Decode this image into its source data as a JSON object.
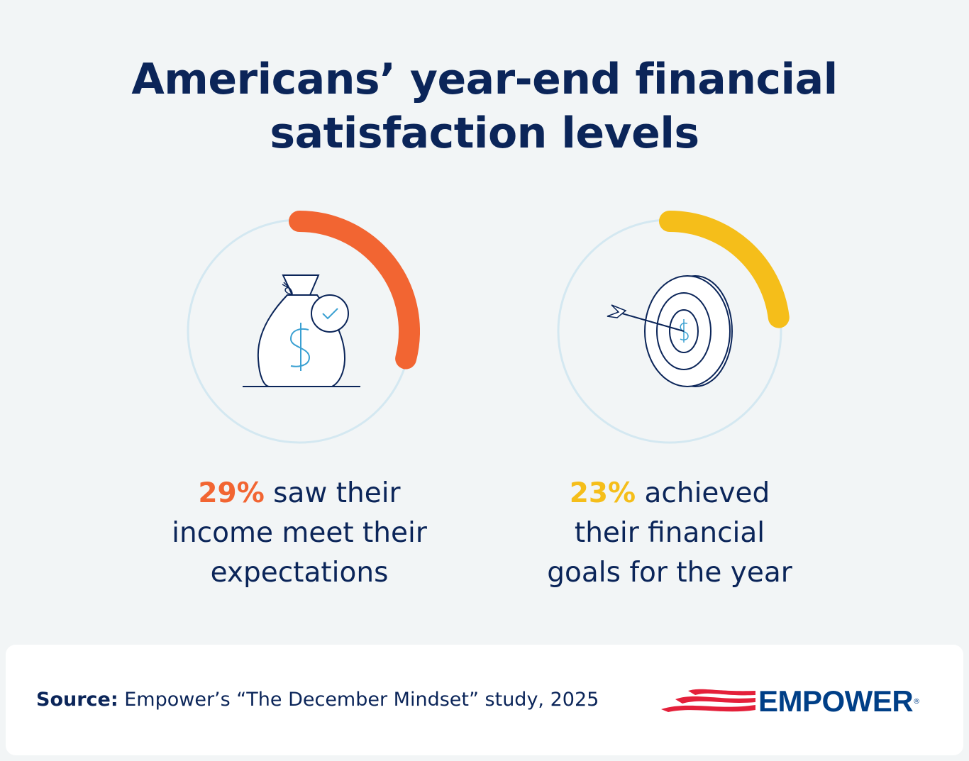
{
  "title_line1": "Americans’ year-end financial",
  "title_line2": "satisfaction levels",
  "chart_data": [
    {
      "type": "pie",
      "variant": "gauge",
      "value": 29,
      "max": 100,
      "color": "#f26532",
      "track_color": "#d4e8f1",
      "icon": "money-bag-check-icon",
      "label_pct": "29%",
      "label_text_1": " saw their",
      "label_text_2": "income meet their",
      "label_text_3": "expectations"
    },
    {
      "type": "pie",
      "variant": "gauge",
      "value": 23,
      "max": 100,
      "color": "#f5be1a",
      "track_color": "#d4e8f1",
      "icon": "target-arrow-icon",
      "label_pct": "23%",
      "label_text_1": " achieved",
      "label_text_2": "their financial",
      "label_text_3": "goals for the year"
    }
  ],
  "footer": {
    "source_label": "Source:",
    "source_text": " Empower’s “The December Mindset” study, 2025",
    "logo_text": "EMPOWER",
    "logo_reg": "®",
    "logo_colors": {
      "flag": "#e4203a",
      "text": "#003f87"
    }
  }
}
